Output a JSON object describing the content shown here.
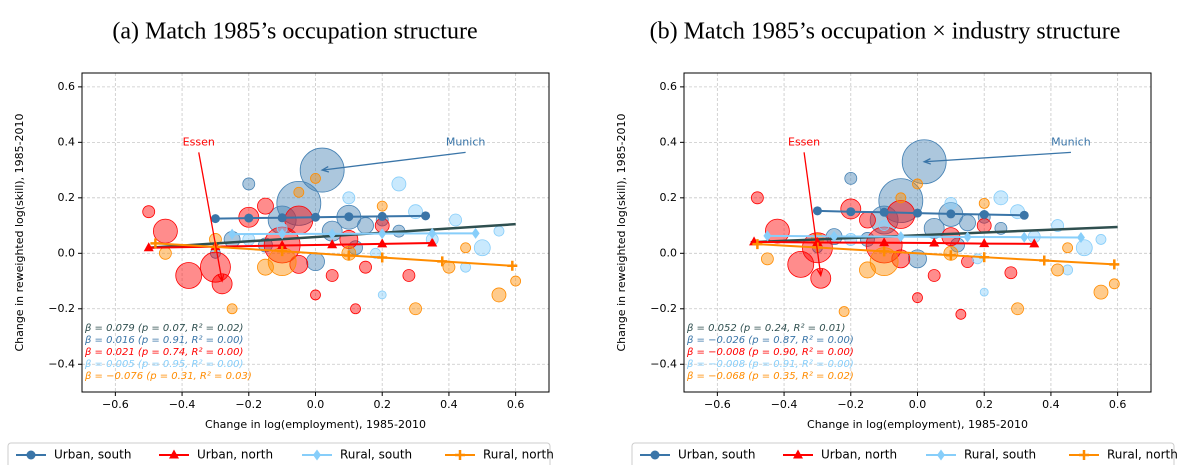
{
  "chart_data": [
    {
      "type": "scatter",
      "title": "(a) Match 1985’s occupation structure",
      "xlabel": "Change in log(employment), 1985-2010",
      "ylabel": "Change in reweighted log(skill), 1985-2010",
      "xlim": [
        -0.7,
        0.7
      ],
      "ylim": [
        -0.5,
        0.65
      ],
      "xticks": [
        {
          "value": -0.6,
          "label": "−0.6"
        },
        {
          "value": -0.4,
          "label": "−0.4"
        },
        {
          "value": -0.2,
          "label": "−0.2"
        },
        {
          "value": 0,
          "label": "0.0"
        },
        0.2,
        0.4,
        0.6
      ],
      "yticks": [
        {
          "value": -0.4,
          "label": "−0.4"
        },
        {
          "value": -0.2,
          "label": "−0.2"
        },
        {
          "value": 0,
          "label": "0.0"
        },
        0.2,
        0.4,
        0.6
      ],
      "grid": true,
      "overall_fit": {
        "color": "#2f4f4f",
        "x": [
          -0.5,
          0.6
        ],
        "y": [
          0.02,
          0.105
        ],
        "stat": "β = 0.079 (p = 0.07, R² = 0.02)"
      },
      "series": [
        {
          "name": "Urban, south",
          "color": "#3a75a8",
          "bubble_color": "#4682b4",
          "marker": "circle",
          "x": [
            0.02,
            -0.05,
            -0.1,
            0.1,
            -0.2,
            0.05,
            -0.25,
            0.15,
            0.0,
            -0.15,
            0.2,
            0.12,
            -0.3,
            0.25
          ],
          "y": [
            0.3,
            0.18,
            0.12,
            0.13,
            0.25,
            0.08,
            0.05,
            0.1,
            -0.03,
            0.03,
            0.12,
            0.02,
            0.0,
            0.08
          ],
          "size": [
            22,
            22,
            14,
            12,
            6,
            10,
            8,
            8,
            9,
            7,
            6,
            7,
            5,
            6
          ],
          "fit": {
            "x": [
              -0.3,
              -0.2,
              -0.1,
              0,
              0.1,
              0.2,
              0.33
            ],
            "y": [
              0.125,
              0.127,
              0.128,
              0.13,
              0.132,
              0.133,
              0.135
            ]
          },
          "stat": "β = 0.016 (p = 0.91, R² = 0.00)"
        },
        {
          "name": "Urban, north",
          "color": "#ff0000",
          "bubble_color": "#ff0000",
          "marker": "triangle",
          "x": [
            -0.28,
            -0.45,
            -0.38,
            -0.3,
            -0.2,
            -0.05,
            -0.1,
            -0.15,
            0.1,
            0.2,
            0.28,
            0.15,
            -0.5,
            0.05,
            0.12,
            0.0,
            -0.05
          ],
          "y": [
            -0.11,
            0.08,
            -0.08,
            -0.05,
            0.13,
            0.12,
            0.03,
            0.17,
            0.05,
            0.1,
            -0.08,
            -0.05,
            0.15,
            -0.08,
            -0.2,
            -0.15,
            -0.04
          ],
          "size": [
            10,
            12,
            13,
            15,
            10,
            14,
            18,
            8,
            9,
            7,
            6,
            6,
            6,
            6,
            5,
            5,
            9
          ],
          "fit": {
            "x": [
              -0.5,
              -0.3,
              -0.1,
              0.05,
              0.2,
              0.35
            ],
            "y": [
              0.02,
              0.024,
              0.028,
              0.031,
              0.034,
              0.037
            ]
          },
          "stat": "β = 0.021 (p = 0.74, R² = 0.00)"
        },
        {
          "name": "Rural, south",
          "color": "#87cefa",
          "bubble_color": "#87cefa",
          "marker": "diamond",
          "x": [
            0.25,
            0.5,
            0.3,
            0.42,
            0.45,
            -0.2,
            0.18,
            0.35,
            -0.1,
            0.1,
            0.55,
            0.2
          ],
          "y": [
            0.25,
            0.02,
            0.15,
            0.12,
            -0.05,
            0.05,
            0.0,
            0.05,
            0.09,
            0.2,
            0.08,
            -0.15
          ],
          "size": [
            7,
            8,
            7,
            6,
            5,
            6,
            5,
            6,
            5,
            6,
            5,
            4
          ],
          "fit": {
            "x": [
              -0.25,
              -0.1,
              0.05,
              0.2,
              0.35,
              0.48
            ],
            "y": [
              0.069,
              0.07,
              0.07,
              0.071,
              0.072,
              0.072
            ]
          },
          "stat": "β = 0.005 (p = 0.95, R² = 0.00)"
        },
        {
          "name": "Rural, north",
          "color": "#ff8c00",
          "bubble_color": "#ff8c00",
          "marker": "plus",
          "x": [
            -0.45,
            0.4,
            0.55,
            0.6,
            -0.1,
            0.2,
            -0.3,
            0.45,
            -0.15,
            -0.05,
            0.1,
            0.3,
            -0.25,
            0.0
          ],
          "y": [
            0.0,
            -0.05,
            -0.15,
            -0.1,
            -0.03,
            0.17,
            0.05,
            0.02,
            -0.05,
            0.22,
            0.0,
            -0.2,
            -0.2,
            0.27
          ],
          "size": [
            6,
            6,
            7,
            5,
            14,
            5,
            6,
            5,
            8,
            5,
            7,
            6,
            5,
            5
          ],
          "fit": {
            "x": [
              -0.48,
              -0.3,
              -0.1,
              0.1,
              0.2,
              0.38,
              0.59
            ],
            "y": [
              0.036,
              0.023,
              0.008,
              -0.008,
              -0.015,
              -0.029,
              -0.045
            ]
          },
          "stat": "β = −0.076 (p = 0.31, R² = 0.03)"
        }
      ],
      "annotations": [
        {
          "text": "Essen",
          "color": "#ff0000",
          "xy": [
            -0.28,
            -0.1
          ],
          "xytext": [
            -0.35,
            0.4
          ]
        },
        {
          "text": "Munich",
          "color": "#3a75a8",
          "xy": [
            0.02,
            0.3
          ],
          "xytext": [
            0.45,
            0.4
          ]
        }
      ]
    },
    {
      "type": "scatter",
      "title": "(b) Match 1985’s occupation × industry structure",
      "xlabel": "Change in log(employment), 1985-2010",
      "ylabel": "Change in reweighted log(skill), 1985-2010",
      "xlim": [
        -0.7,
        0.7
      ],
      "ylim": [
        -0.5,
        0.65
      ],
      "xticks": [
        {
          "value": -0.6,
          "label": "−0.6"
        },
        {
          "value": -0.4,
          "label": "−0.4"
        },
        {
          "value": -0.2,
          "label": "−0.2"
        },
        {
          "value": 0,
          "label": "0.0"
        },
        0.2,
        0.4,
        0.6
      ],
      "yticks": [
        {
          "value": -0.4,
          "label": "−0.4"
        },
        {
          "value": -0.2,
          "label": "−0.2"
        },
        {
          "value": 0,
          "label": "0.0"
        },
        0.2,
        0.4,
        0.6
      ],
      "grid": true,
      "overall_fit": {
        "color": "#2f4f4f",
        "x": [
          -0.5,
          0.6
        ],
        "y": [
          0.04,
          0.095
        ],
        "stat": "β = 0.052 (p = 0.24, R² = 0.01)"
      },
      "series": [
        {
          "name": "Urban, south",
          "color": "#3a75a8",
          "bubble_color": "#4682b4",
          "marker": "circle",
          "x": [
            0.02,
            -0.05,
            -0.1,
            0.1,
            -0.2,
            0.05,
            -0.25,
            0.15,
            0.0,
            -0.15,
            0.2,
            0.12,
            -0.3,
            0.25
          ],
          "y": [
            0.33,
            0.19,
            0.12,
            0.14,
            0.27,
            0.09,
            0.06,
            0.11,
            -0.02,
            0.05,
            0.13,
            0.03,
            0.02,
            0.09
          ],
          "size": [
            22,
            22,
            14,
            12,
            6,
            10,
            8,
            8,
            9,
            7,
            6,
            7,
            5,
            6
          ],
          "fit": {
            "x": [
              -0.3,
              -0.2,
              -0.1,
              0,
              0.1,
              0.2,
              0.32
            ],
            "y": [
              0.153,
              0.15,
              0.148,
              0.145,
              0.142,
              0.14,
              0.137
            ]
          },
          "stat": "β = −0.026 (p = 0.87, R² = 0.00)"
        },
        {
          "name": "Urban, north",
          "color": "#ff0000",
          "bubble_color": "#ff0000",
          "marker": "triangle",
          "x": [
            -0.29,
            -0.42,
            -0.35,
            -0.3,
            -0.2,
            -0.05,
            -0.1,
            -0.15,
            0.1,
            0.2,
            0.28,
            0.15,
            -0.48,
            0.05,
            0.13,
            0.0,
            -0.05
          ],
          "y": [
            -0.09,
            0.08,
            -0.04,
            0.02,
            0.16,
            0.14,
            0.03,
            0.12,
            0.06,
            0.1,
            -0.07,
            -0.03,
            0.2,
            -0.08,
            -0.22,
            -0.16,
            -0.02
          ],
          "size": [
            10,
            12,
            13,
            15,
            10,
            14,
            18,
            8,
            9,
            7,
            6,
            6,
            6,
            6,
            5,
            5,
            9
          ],
          "fit": {
            "x": [
              -0.49,
              -0.3,
              -0.1,
              0.05,
              0.2,
              0.35
            ],
            "y": [
              0.041,
              0.039,
              0.038,
              0.037,
              0.035,
              0.034
            ]
          },
          "stat": "β = −0.008 (p = 0.90, R² = 0.00)"
        },
        {
          "name": "Rural, south",
          "color": "#87cefa",
          "bubble_color": "#87cefa",
          "marker": "diamond",
          "x": [
            0.25,
            0.5,
            0.3,
            0.42,
            0.45,
            -0.2,
            0.18,
            0.35,
            -0.1,
            0.1,
            0.55,
            0.2
          ],
          "y": [
            0.2,
            0.02,
            0.15,
            0.1,
            -0.06,
            0.05,
            -0.02,
            0.06,
            0.1,
            0.18,
            0.05,
            -0.14
          ],
          "size": [
            7,
            8,
            7,
            6,
            5,
            6,
            5,
            6,
            5,
            6,
            5,
            4
          ],
          "fit": {
            "x": [
              -0.45,
              -0.25,
              -0.05,
              0.15,
              0.32,
              0.49
            ],
            "y": [
              0.063,
              0.061,
              0.06,
              0.059,
              0.058,
              0.057
            ]
          },
          "stat": "β = −0.008 (p = 0.91, R² = 0.00)"
        },
        {
          "name": "Rural, north",
          "color": "#ff8c00",
          "bubble_color": "#ff8c00",
          "marker": "plus",
          "x": [
            -0.45,
            0.42,
            0.55,
            0.59,
            -0.1,
            0.2,
            -0.3,
            0.45,
            -0.15,
            -0.05,
            0.1,
            0.3,
            -0.22,
            0.0
          ],
          "y": [
            -0.02,
            -0.06,
            -0.14,
            -0.11,
            -0.03,
            0.18,
            0.05,
            0.02,
            -0.06,
            0.2,
            0.0,
            -0.2,
            -0.21,
            0.25
          ],
          "size": [
            6,
            6,
            7,
            5,
            14,
            5,
            6,
            5,
            8,
            5,
            7,
            6,
            5,
            5
          ],
          "fit": {
            "x": [
              -0.48,
              -0.3,
              -0.1,
              0.1,
              0.2,
              0.38,
              0.59
            ],
            "y": [
              0.033,
              0.021,
              0.007,
              -0.007,
              -0.014,
              -0.026,
              -0.04
            ]
          },
          "stat": "β = −0.068 (p = 0.35, R² = 0.02)"
        }
      ],
      "annotations": [
        {
          "text": "Essen",
          "color": "#ff0000",
          "xy": [
            -0.29,
            -0.08
          ],
          "xytext": [
            -0.34,
            0.4
          ]
        },
        {
          "text": "Munich",
          "color": "#3a75a8",
          "xy": [
            0.02,
            0.33
          ],
          "xytext": [
            0.46,
            0.4
          ]
        }
      ]
    }
  ]
}
